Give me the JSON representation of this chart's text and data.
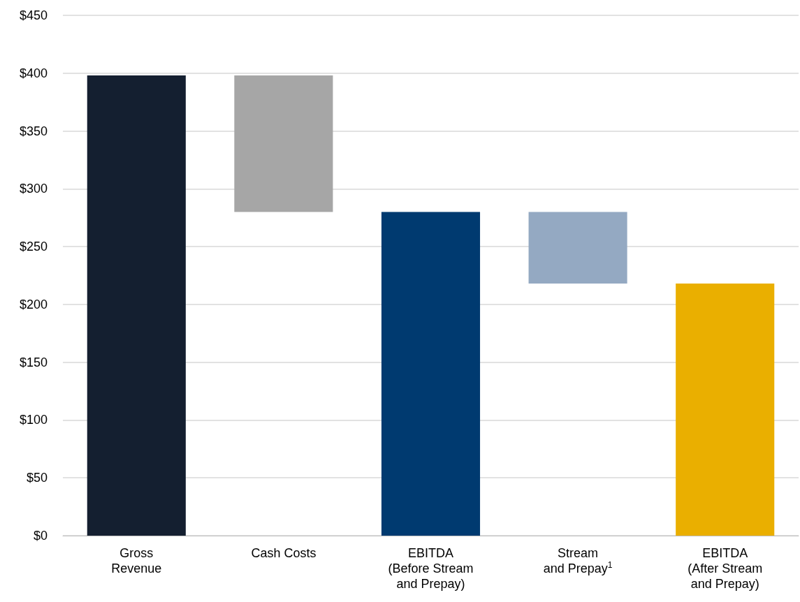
{
  "chart_data": {
    "type": "bar",
    "categories": [
      "Gross\nRevenue",
      "Cash Costs",
      "EBITDA\n(Before Stream\nand Prepay)",
      "Stream\nand Prepay$^{1}$",
      "EBITDA\n(After Stream\nand Prepay)"
    ],
    "values": [
      398,
      118,
      280,
      62,
      218
    ],
    "base": [
      0,
      280,
      0,
      218,
      0
    ],
    "colors": [
      "#141f30",
      "#a6a6a6",
      "#003a70",
      "#94a9c2",
      "#eaaf00"
    ],
    "ylim": [
      0,
      450
    ],
    "yticks": [
      {
        "value": 0,
        "label": "$0"
      },
      {
        "value": 50,
        "label": "$50"
      },
      {
        "value": 100,
        "label": "$100"
      },
      {
        "value": 150,
        "label": "$150"
      },
      {
        "value": 200,
        "label": "$200"
      },
      {
        "value": 250,
        "label": "$250"
      },
      {
        "value": 300,
        "label": "$300"
      },
      {
        "value": 350,
        "label": "$350"
      },
      {
        "value": 400,
        "label": "$400"
      },
      {
        "value": 450,
        "label": "$450"
      }
    ],
    "grid": "y"
  }
}
